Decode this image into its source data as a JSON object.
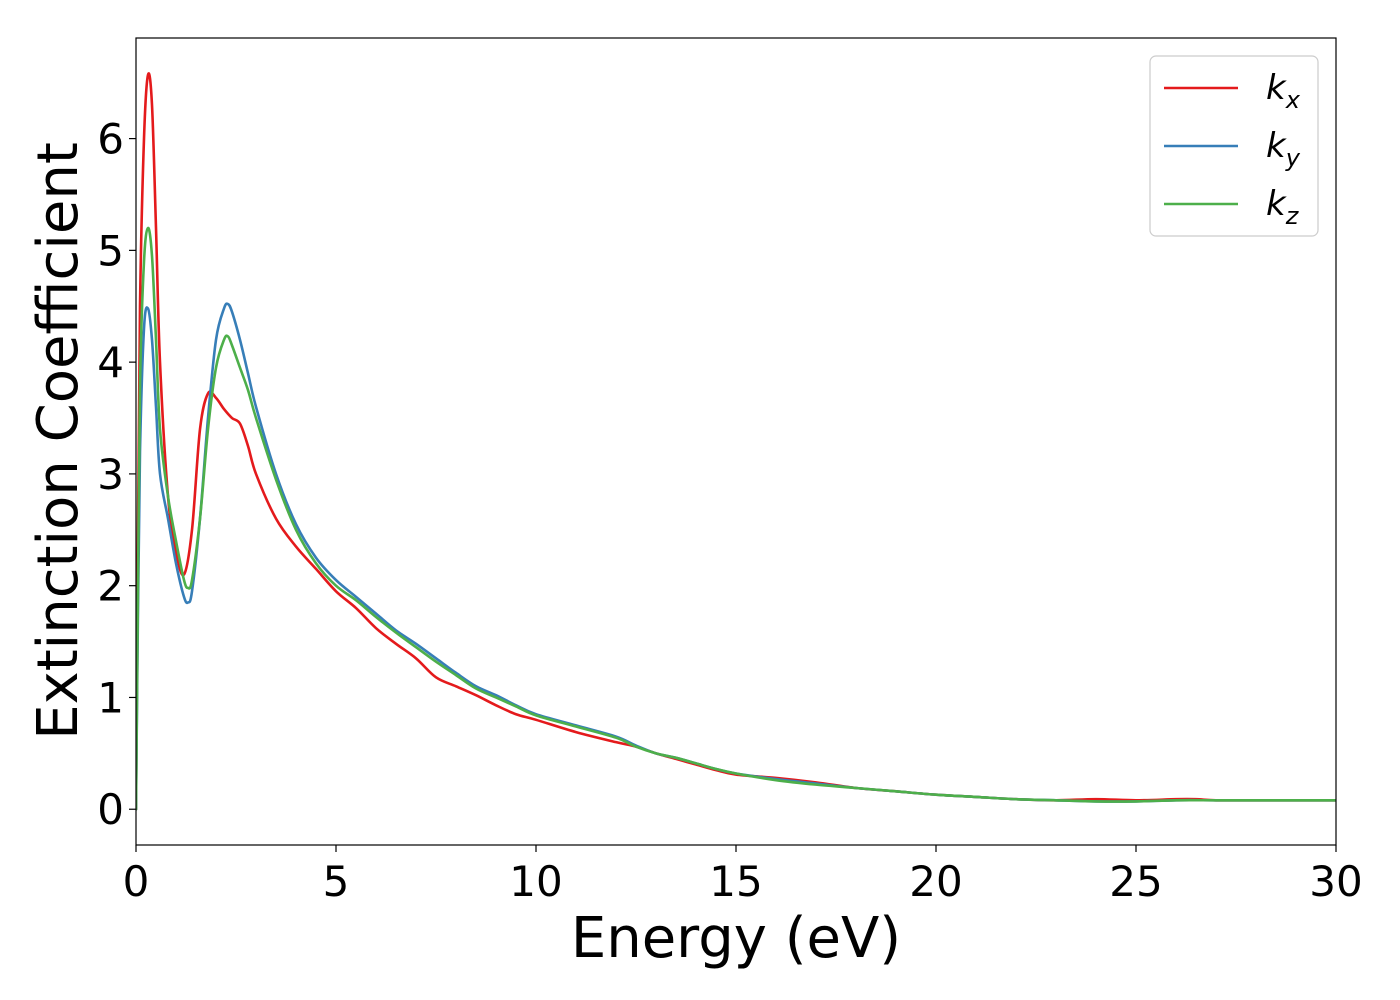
{
  "chart_data": {
    "type": "line",
    "title": "",
    "xlabel": "Energy (eV)",
    "ylabel": "Extinction Coefficient",
    "xlim": [
      0,
      30
    ],
    "ylim": [
      -0.32,
      6.9
    ],
    "xticks": [
      0,
      5,
      10,
      15,
      20,
      25,
      30
    ],
    "xtick_labels": [
      "0",
      "5",
      "10",
      "15",
      "20",
      "25",
      "30"
    ],
    "yticks": [
      0,
      1,
      2,
      3,
      4,
      5,
      6
    ],
    "ytick_labels": [
      "0",
      "1",
      "2",
      "3",
      "4",
      "5",
      "6"
    ],
    "grid": false,
    "legend_position": "top-right",
    "series": [
      {
        "name": "k",
        "subscript": "x",
        "color": "#e41a1c",
        "x": [
          0,
          0.05,
          0.1,
          0.2,
          0.3,
          0.4,
          0.5,
          0.6,
          0.8,
          1.0,
          1.2,
          1.4,
          1.6,
          1.8,
          2.0,
          2.2,
          2.4,
          2.6,
          2.8,
          3.0,
          3.5,
          4.0,
          4.5,
          5.0,
          5.5,
          6.0,
          6.5,
          7.0,
          7.5,
          8.0,
          8.5,
          9.0,
          9.5,
          10.0,
          11.0,
          12.0,
          12.5,
          13.0,
          13.5,
          14.0,
          14.5,
          15.0,
          16.0,
          17.0,
          18.0,
          19.0,
          20.0,
          21.0,
          22.0,
          23.0,
          24.0,
          25.0,
          26.0,
          26.5,
          27.0,
          28.0,
          29.0,
          30.0
        ],
        "y": [
          0.0,
          2.5,
          4.5,
          6.0,
          6.57,
          6.3,
          5.2,
          4.0,
          2.8,
          2.3,
          2.1,
          2.5,
          3.4,
          3.72,
          3.68,
          3.58,
          3.5,
          3.45,
          3.25,
          3.0,
          2.6,
          2.35,
          2.15,
          1.95,
          1.8,
          1.62,
          1.48,
          1.35,
          1.18,
          1.1,
          1.02,
          0.93,
          0.85,
          0.8,
          0.69,
          0.6,
          0.56,
          0.5,
          0.45,
          0.4,
          0.35,
          0.31,
          0.28,
          0.24,
          0.19,
          0.16,
          0.13,
          0.11,
          0.09,
          0.08,
          0.09,
          0.08,
          0.09,
          0.09,
          0.08,
          0.08,
          0.08,
          0.08
        ]
      },
      {
        "name": "k",
        "subscript": "y",
        "color": "#377eb8",
        "x": [
          0,
          0.05,
          0.1,
          0.2,
          0.3,
          0.4,
          0.5,
          0.6,
          0.8,
          1.0,
          1.2,
          1.3,
          1.4,
          1.6,
          1.8,
          2.0,
          2.2,
          2.3,
          2.4,
          2.6,
          2.8,
          3.0,
          3.5,
          4.0,
          4.5,
          5.0,
          5.5,
          6.0,
          6.5,
          7.0,
          7.5,
          8.0,
          8.5,
          9.0,
          9.5,
          10.0,
          11.0,
          12.0,
          12.5,
          13.0,
          13.5,
          14.0,
          14.5,
          15.0,
          16.0,
          17.0,
          18.0,
          19.0,
          20.0,
          21.0,
          22.0,
          23.0,
          24.0,
          25.0,
          26.0,
          27.0,
          28.0,
          29.0,
          30.0
        ],
        "y": [
          0.0,
          1.8,
          3.2,
          4.3,
          4.48,
          4.2,
          3.6,
          3.0,
          2.6,
          2.2,
          1.9,
          1.85,
          1.95,
          2.6,
          3.5,
          4.2,
          4.48,
          4.52,
          4.45,
          4.2,
          3.9,
          3.6,
          3.0,
          2.55,
          2.25,
          2.05,
          1.9,
          1.75,
          1.6,
          1.48,
          1.35,
          1.22,
          1.1,
          1.02,
          0.93,
          0.85,
          0.75,
          0.65,
          0.57,
          0.5,
          0.46,
          0.41,
          0.36,
          0.32,
          0.27,
          0.23,
          0.19,
          0.16,
          0.13,
          0.11,
          0.09,
          0.08,
          0.07,
          0.07,
          0.08,
          0.08,
          0.08,
          0.08,
          0.08
        ]
      },
      {
        "name": "k",
        "subscript": "z",
        "color": "#4daf4a",
        "x": [
          0,
          0.05,
          0.1,
          0.2,
          0.3,
          0.4,
          0.5,
          0.6,
          0.8,
          1.0,
          1.2,
          1.3,
          1.4,
          1.6,
          1.8,
          2.0,
          2.2,
          2.3,
          2.4,
          2.6,
          2.8,
          3.0,
          3.5,
          4.0,
          4.5,
          5.0,
          5.5,
          6.0,
          6.5,
          7.0,
          7.5,
          8.0,
          8.5,
          9.0,
          9.5,
          10.0,
          11.0,
          12.0,
          12.5,
          13.0,
          13.5,
          14.0,
          14.5,
          15.0,
          16.0,
          17.0,
          18.0,
          19.0,
          20.0,
          21.0,
          22.0,
          23.0,
          24.0,
          25.0,
          26.0,
          27.0,
          28.0,
          29.0,
          30.0
        ],
        "y": [
          0.0,
          2.0,
          3.8,
          4.9,
          5.2,
          4.95,
          4.2,
          3.4,
          2.8,
          2.4,
          2.05,
          1.98,
          2.05,
          2.6,
          3.4,
          3.95,
          4.2,
          4.23,
          4.15,
          3.95,
          3.75,
          3.5,
          2.95,
          2.5,
          2.2,
          2.0,
          1.87,
          1.72,
          1.58,
          1.45,
          1.32,
          1.2,
          1.08,
          1.0,
          0.92,
          0.84,
          0.74,
          0.64,
          0.56,
          0.5,
          0.46,
          0.41,
          0.36,
          0.32,
          0.26,
          0.22,
          0.19,
          0.16,
          0.13,
          0.11,
          0.09,
          0.08,
          0.07,
          0.07,
          0.08,
          0.08,
          0.08,
          0.08,
          0.08
        ]
      }
    ]
  }
}
